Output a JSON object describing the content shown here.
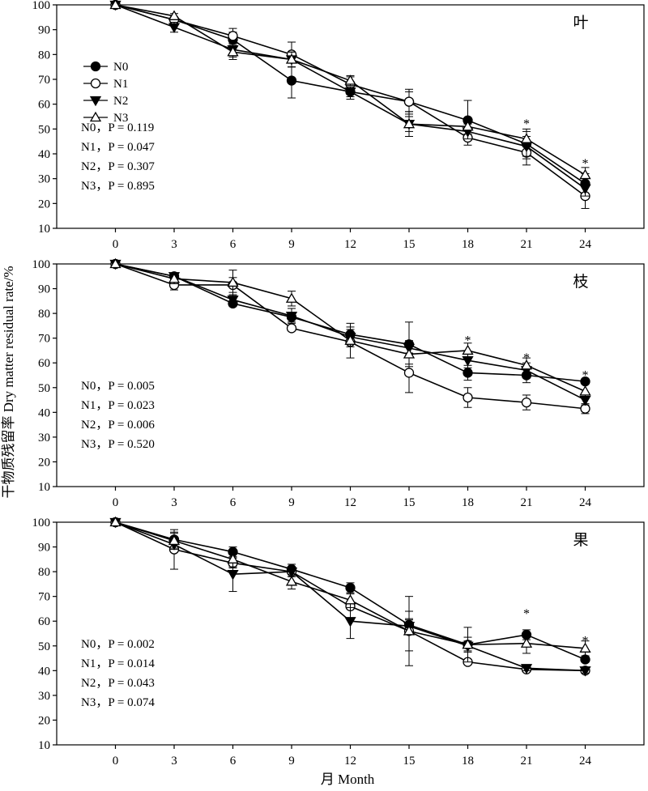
{
  "figure": {
    "ylabel": "干物质残留率 Dry matter residual rate/%",
    "xlabel": "月 Month"
  },
  "chart_data": [
    {
      "type": "line",
      "title": "叶",
      "x": [
        0,
        3,
        6,
        9,
        12,
        15,
        18,
        21,
        24
      ],
      "xlim": [
        -3,
        27
      ],
      "ylim": [
        10,
        100
      ],
      "yticks": [
        10,
        20,
        30,
        40,
        50,
        60,
        70,
        80,
        90,
        100
      ],
      "grid": false,
      "legend": {
        "position": "top-left",
        "entries": [
          "N0",
          "N1",
          "N2",
          "N3"
        ]
      },
      "series": [
        {
          "name": "N0",
          "marker": "circle-filled",
          "values": [
            100,
            94,
            86,
            69.5,
            65,
            61,
            53.5,
            44,
            28
          ],
          "errors": [
            0,
            1,
            3,
            7,
            3,
            4,
            8,
            6,
            4
          ]
        },
        {
          "name": "N1",
          "marker": "circle-open",
          "values": [
            100,
            94,
            87.5,
            80,
            68,
            61,
            46.5,
            40.5,
            23
          ],
          "errors": [
            0,
            1,
            3,
            5,
            3,
            5,
            3,
            5,
            5
          ]
        },
        {
          "name": "N2",
          "marker": "triangle-down-filled",
          "values": [
            100,
            91,
            82,
            78,
            65,
            52,
            49,
            43,
            26
          ],
          "errors": [
            0,
            2,
            3,
            3,
            2,
            3,
            3,
            4,
            3
          ]
        },
        {
          "name": "N3",
          "marker": "triangle-up-open",
          "values": [
            100,
            95.5,
            81,
            78,
            69.5,
            52,
            51,
            46,
            31.5
          ],
          "errors": [
            0,
            1,
            3,
            3,
            2,
            5,
            3,
            3,
            3
          ]
        }
      ],
      "significance_marks": [
        {
          "x": 21,
          "y": 53,
          "label": "*"
        },
        {
          "x": 24,
          "y": 37,
          "label": "*"
        }
      ],
      "annotations": [
        "N0，P = 0.119",
        "N1，P = 0.047",
        "N2，P = 0.307",
        "N3，P = 0.895"
      ]
    },
    {
      "type": "line",
      "title": "枝",
      "x": [
        0,
        3,
        6,
        9,
        12,
        15,
        18,
        21,
        24
      ],
      "xlim": [
        -3,
        27
      ],
      "ylim": [
        10,
        100
      ],
      "yticks": [
        10,
        20,
        30,
        40,
        50,
        60,
        70,
        80,
        90,
        100
      ],
      "grid": false,
      "legend": null,
      "series": [
        {
          "name": "N0",
          "marker": "circle-filled",
          "values": [
            100,
            95,
            84,
            78.5,
            71.5,
            67.5,
            56,
            55,
            52.5
          ],
          "errors": [
            0,
            1,
            1,
            2,
            3,
            9,
            3,
            3,
            1
          ]
        },
        {
          "name": "N1",
          "marker": "circle-open",
          "values": [
            100,
            91.5,
            91.5,
            74,
            68.5,
            56,
            46,
            44,
            41.5
          ],
          "errors": [
            0,
            2,
            3,
            1,
            2,
            8,
            4,
            3,
            2
          ]
        },
        {
          "name": "N2",
          "marker": "triangle-down-filled",
          "values": [
            100,
            95,
            85.5,
            79,
            70.5,
            66,
            61,
            57,
            45
          ],
          "errors": [
            0,
            1,
            2,
            3,
            3,
            3,
            3,
            3,
            2
          ]
        },
        {
          "name": "N3",
          "marker": "triangle-up-open",
          "values": [
            100,
            94,
            92.5,
            86,
            69,
            63.5,
            65,
            59,
            48.5
          ],
          "errors": [
            0,
            2,
            5,
            3,
            7,
            4,
            3,
            3,
            3
          ]
        }
      ],
      "significance_marks": [
        {
          "x": 18,
          "y": 70,
          "label": "*"
        },
        {
          "x": 21,
          "y": 63,
          "label": "*"
        },
        {
          "x": 24,
          "y": 56,
          "label": "*"
        }
      ],
      "annotations": [
        "N0，P = 0.005",
        "N1，P = 0.023",
        "N2，P = 0.006",
        "N3，P = 0.520"
      ]
    },
    {
      "type": "line",
      "title": "果",
      "x": [
        0,
        3,
        6,
        9,
        12,
        15,
        18,
        21,
        24
      ],
      "xlim": [
        -3,
        27
      ],
      "ylim": [
        10,
        100
      ],
      "yticks": [
        10,
        20,
        30,
        40,
        50,
        60,
        70,
        80,
        90,
        100
      ],
      "grid": false,
      "legend": null,
      "series": [
        {
          "name": "N0",
          "marker": "circle-filled",
          "values": [
            100,
            93,
            88,
            81,
            73.5,
            58.5,
            50.5,
            54.5,
            44.5
          ],
          "errors": [
            0,
            3,
            2,
            2,
            2,
            2,
            3,
            2,
            1
          ]
        },
        {
          "name": "N1",
          "marker": "circle-open",
          "values": [
            100,
            89,
            83.5,
            80,
            66,
            56,
            43.5,
            40.5,
            40
          ],
          "errors": [
            0,
            8,
            2,
            2,
            5,
            8,
            1,
            1,
            1
          ]
        },
        {
          "name": "N2",
          "marker": "triangle-down-filled",
          "values": [
            100,
            91,
            79,
            80,
            60,
            58,
            50,
            41,
            40
          ],
          "errors": [
            0,
            2,
            7,
            2,
            7,
            3,
            2,
            1,
            1
          ]
        },
        {
          "name": "N3",
          "marker": "triangle-up-open",
          "values": [
            100,
            92.5,
            85,
            76,
            68.5,
            56,
            50.5,
            51,
            49
          ],
          "errors": [
            0,
            3,
            3,
            3,
            3,
            14,
            7,
            4,
            3
          ]
        }
      ],
      "significance_marks": [
        {
          "x": 21,
          "y": 64,
          "label": "*"
        },
        {
          "x": 24,
          "y": 53,
          "label": "*"
        }
      ],
      "annotations": [
        "N0，P = 0.002",
        "N1，P = 0.014",
        "N2，P = 0.043",
        "N3，P = 0.074"
      ]
    }
  ]
}
